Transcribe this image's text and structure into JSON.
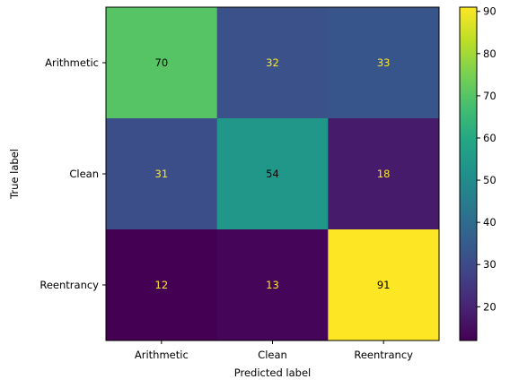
{
  "chart_data": {
    "type": "heatmap",
    "title": "",
    "xlabel": "Predicted label",
    "ylabel": "True label",
    "x_categories": [
      "Arithmetic",
      "Clean",
      "Reentrancy"
    ],
    "y_categories": [
      "Arithmetic",
      "Clean",
      "Reentrancy"
    ],
    "matrix": [
      [
        70,
        32,
        33
      ],
      [
        31,
        54,
        18
      ],
      [
        12,
        13,
        91
      ]
    ],
    "colormap": "viridis",
    "colorbar": {
      "range": [
        12,
        91
      ],
      "ticks": [
        20,
        30,
        40,
        50,
        60,
        70,
        80,
        90
      ]
    },
    "text_colors": {
      "light": "#fde725",
      "dark": "#000000"
    }
  }
}
